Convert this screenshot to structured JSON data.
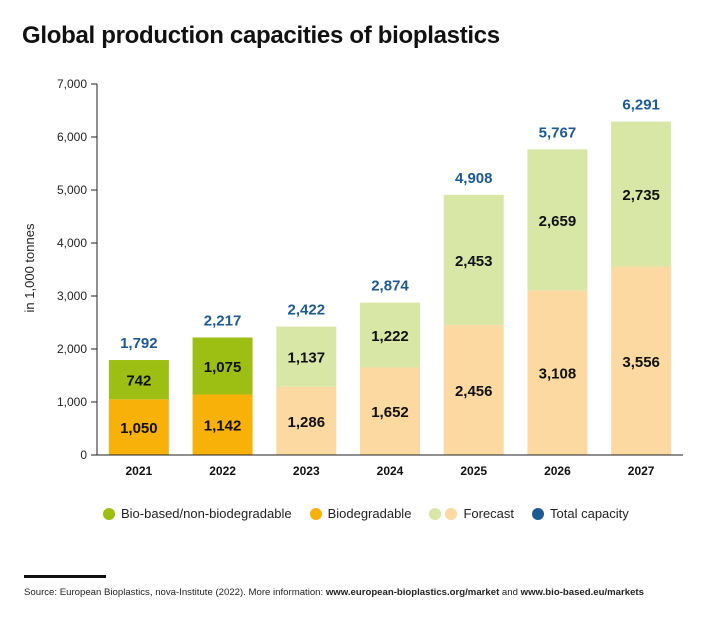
{
  "title": "Global production capacities of bioplastics",
  "colors": {
    "bio_based": "#9dbe12",
    "biodegradable": "#f8b108",
    "forecast_bio_based": "#d8e6a6",
    "forecast_biodegradable": "#fbd9a0",
    "total": "#1c5a94",
    "axis": "#222222",
    "grid": "#dddddd"
  },
  "legend": [
    {
      "label": "Bio-based/non-biodegradable",
      "swatches": [
        "bio_based"
      ]
    },
    {
      "label": "Biodegradable",
      "swatches": [
        "biodegradable"
      ]
    },
    {
      "label": "Forecast",
      "swatches": [
        "forecast_bio_based",
        "forecast_biodegradable"
      ]
    },
    {
      "label": "Total capacity",
      "swatches": [
        "total"
      ]
    }
  ],
  "chart_data": {
    "type": "bar",
    "stacked": true,
    "title": "Global production capacities of bioplastics",
    "xlabel": "",
    "ylabel": "in 1,000 tonnes",
    "ylim": [
      0,
      7000
    ],
    "yticks": [
      0,
      1000,
      2000,
      3000,
      4000,
      5000,
      6000,
      7000
    ],
    "ytick_labels": [
      "0",
      "1,000",
      "2,000",
      "3,000",
      "4,000",
      "5,000",
      "6,000",
      "7,000"
    ],
    "grid": false,
    "legend_position": "bottom-left",
    "categories": [
      "2021",
      "2022",
      "2023",
      "2024",
      "2025",
      "2026",
      "2027"
    ],
    "forecast_from": "2023",
    "series": [
      {
        "name": "Biodegradable",
        "values": [
          1050,
          1142,
          1286,
          1652,
          2456,
          3108,
          3556
        ],
        "labels": [
          "1,050",
          "1,142",
          "1,286",
          "1,652",
          "2,456",
          "3,108",
          "3,556"
        ]
      },
      {
        "name": "Bio-based/non-biodegradable",
        "values": [
          742,
          1075,
          1137,
          1222,
          2453,
          2659,
          2735
        ],
        "labels": [
          "742",
          "1,075",
          "1,137",
          "1,222",
          "2,453",
          "2,659",
          "2,735"
        ]
      }
    ],
    "totals": {
      "name": "Total capacity",
      "values": [
        1792,
        2217,
        2422,
        2874,
        4908,
        5767,
        6291
      ],
      "labels": [
        "1,792",
        "2,217",
        "2,422",
        "2,874",
        "4,908",
        "5,767",
        "6,291"
      ]
    }
  },
  "source": {
    "prefix": "Source: European Bioplastics, nova-Institute (2022). More information: ",
    "link1": "www.european-bioplastics.org/market",
    "middle": " and ",
    "link2": "www.bio-based.eu/markets"
  }
}
